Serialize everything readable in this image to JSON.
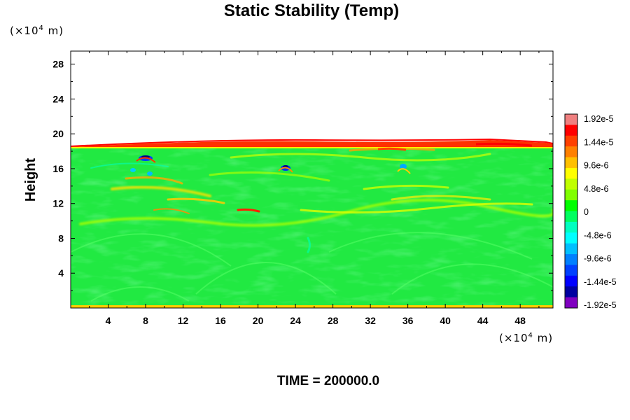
{
  "chart_data": {
    "type": "heatmap",
    "title": "Static Stability (Temp)",
    "ylabel": "Height",
    "x_unit": {
      "base": "(×10",
      "exp": "4",
      "suffix": " m)"
    },
    "y_unit": {
      "base": "(×10",
      "exp": "4",
      "suffix": " m)"
    },
    "xlim": [
      0,
      51.5
    ],
    "ylim": [
      0,
      29.5
    ],
    "x_ticks": [
      4,
      8,
      12,
      16,
      20,
      24,
      28,
      32,
      36,
      40,
      44,
      48
    ],
    "x_tick_labels": [
      "4",
      "8",
      "12",
      "16",
      "20",
      "24",
      "28",
      "32",
      "36",
      "40",
      "44",
      "48"
    ],
    "y_ticks": [
      4,
      8,
      12,
      16,
      20,
      24,
      28
    ],
    "y_tick_labels": [
      "4",
      "8",
      "12",
      "16",
      "20",
      "24",
      "28"
    ],
    "field_top_height": 18.9,
    "dominant_value": 0,
    "colorbar": {
      "range": [
        -1.92e-05,
        1.92e-05
      ],
      "ticks": [
        1.92e-05,
        1.44e-05,
        9.6e-06,
        4.8e-06,
        0,
        -4.8e-06,
        -9.6e-06,
        -1.44e-05,
        -1.92e-05
      ],
      "tick_labels": [
        "1.92e-5",
        "1.44e-5",
        "9.6e-6",
        "4.8e-6",
        "0",
        "-4.8e-6",
        "-9.6e-6",
        "-1.44e-5",
        "-1.92e-5"
      ],
      "colors": [
        "#f08080",
        "#ff0000",
        "#ff4000",
        "#ff8000",
        "#ffc000",
        "#ffff00",
        "#c0ff00",
        "#80ff00",
        "#00ff00",
        "#00ff60",
        "#00ffc0",
        "#00ffff",
        "#00c0ff",
        "#0080ff",
        "#0040ff",
        "#0000ff",
        "#0000a0",
        "#8000c0"
      ]
    },
    "features": [
      {
        "label": "warm band",
        "x": [
          0,
          51.5
        ],
        "y": 19.2,
        "value": 1.44e-05
      },
      {
        "label": "convective cell",
        "x": 8.2,
        "y": 17.3,
        "value": -1.44e-05
      },
      {
        "label": "convective cell",
        "x": 22.8,
        "y": 16.4,
        "value": -1.44e-05
      },
      {
        "label": "convective cell",
        "x": 35.3,
        "y": 16.2,
        "value": -9.6e-06
      },
      {
        "label": "stable layer",
        "x": [
          4,
          46
        ],
        "y": 11,
        "value": 4.8e-06
      }
    ]
  },
  "footer": {
    "text": "TIME = 200000.0"
  }
}
